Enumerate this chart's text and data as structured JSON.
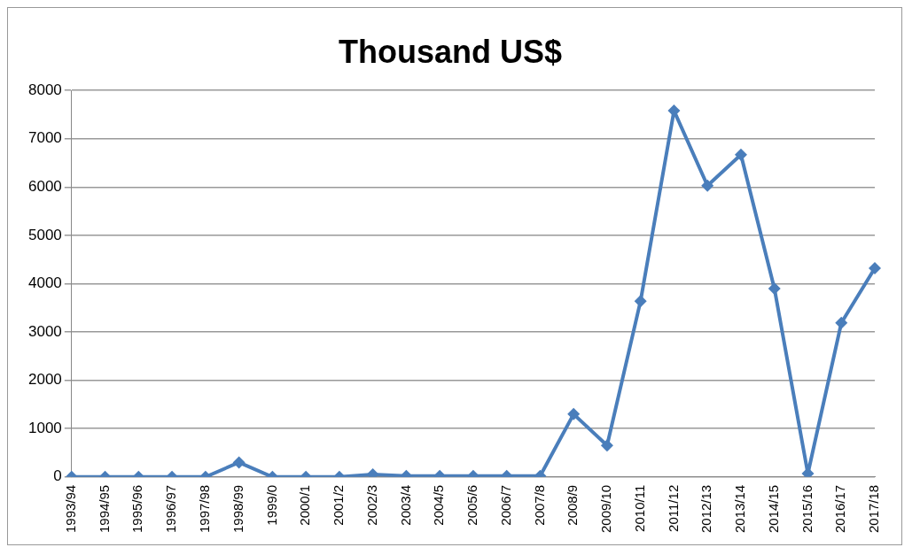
{
  "chart_data": {
    "type": "line",
    "title": "Thousand US$",
    "categories": [
      "1993/94",
      "1994/95",
      "1995/96",
      "1996/97",
      "1997/98",
      "1998/99",
      "1999/0",
      "2000/1",
      "2001/2",
      "2002/3",
      "2003/4",
      "2004/5",
      "2005/6",
      "2006/7",
      "2007/8",
      "2008/9",
      "2009/10",
      "2010/11",
      "2011/12",
      "2012/13",
      "2013/14",
      "2014/15",
      "2015/16",
      "2016/17",
      "2017/18"
    ],
    "series": [
      {
        "color": "#4a7ebb",
        "values": [
          0,
          0,
          0,
          0,
          0,
          300,
          0,
          0,
          0,
          50,
          20,
          20,
          20,
          20,
          20,
          1300,
          650,
          3640,
          7580,
          6030,
          6670,
          3900,
          70,
          3190,
          4320
        ]
      }
    ],
    "ylim": [
      0,
      8000
    ],
    "yticks": [
      0,
      1000,
      2000,
      3000,
      4000,
      5000,
      6000,
      7000,
      8000
    ],
    "grid": "y",
    "legend": false,
    "marker": "diamond",
    "line_style": "solid"
  }
}
